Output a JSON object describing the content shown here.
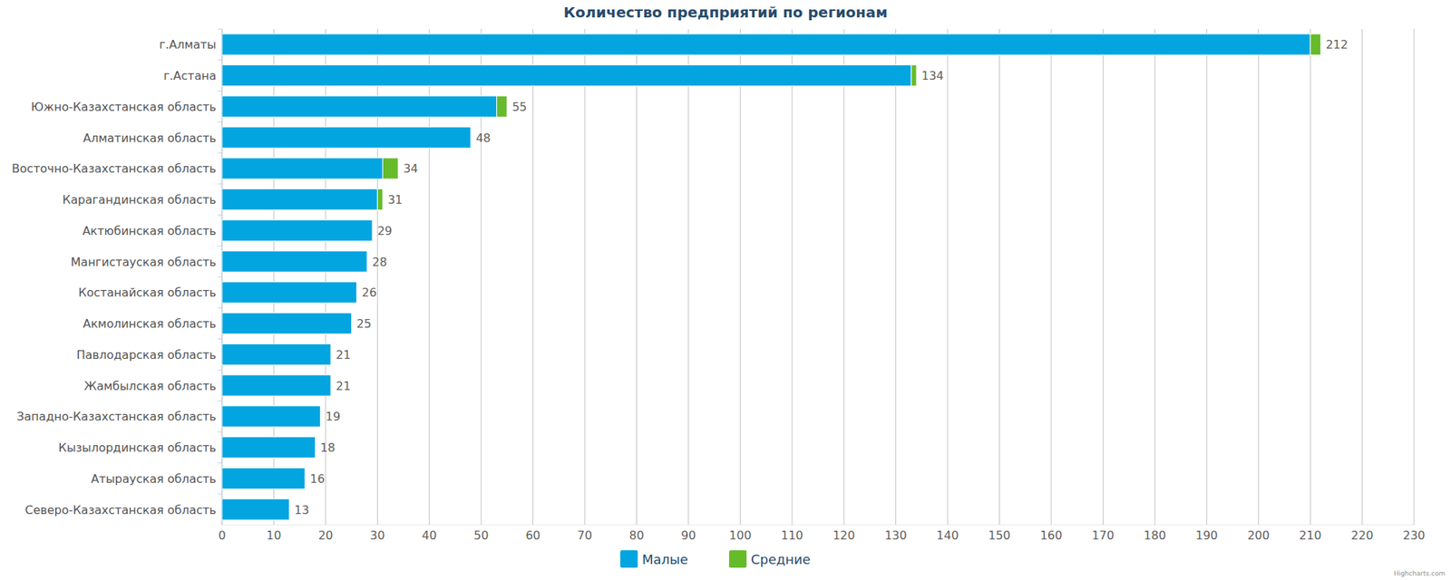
{
  "chart_data": {
    "type": "bar",
    "title": "Количество предприятий по регионам",
    "orientation": "horizontal",
    "stacked": true,
    "grid": true,
    "legend": "bottom",
    "categories": [
      "г.Алматы",
      "г.Астана",
      "Южно-Казахстанская область",
      "Алматинская область",
      "Восточно-Казахстанская область",
      "Карагандинская область",
      "Актюбинская область",
      "Мангистауская область",
      "Костанайская область",
      "Акмолинская область",
      "Павлодарская область",
      "Жамбылская область",
      "Западно-Казахстанская область",
      "Кызылординская область",
      "Атырауская область",
      "Северо-Казахстанская область"
    ],
    "series": [
      {
        "name": "Малые",
        "color": "#02a5e0",
        "values": [
          210,
          133,
          53,
          48,
          31,
          30,
          29,
          28,
          26,
          25,
          21,
          21,
          19,
          18,
          16,
          13
        ]
      },
      {
        "name": "Средние",
        "color": "#66bb2a",
        "values": [
          2,
          1,
          2,
          0,
          3,
          1,
          0,
          0,
          0,
          0,
          0,
          0,
          0,
          0,
          0,
          0
        ]
      }
    ],
    "totals": [
      212,
      134,
      55,
      48,
      34,
      31,
      29,
      28,
      26,
      25,
      21,
      21,
      19,
      18,
      16,
      13
    ],
    "xlim": [
      0,
      230
    ],
    "xticks": [
      0,
      10,
      20,
      30,
      40,
      50,
      60,
      70,
      80,
      90,
      100,
      110,
      120,
      130,
      140,
      150,
      160,
      170,
      180,
      190,
      200,
      210,
      220,
      230
    ],
    "credits": "Highcharts.com"
  }
}
